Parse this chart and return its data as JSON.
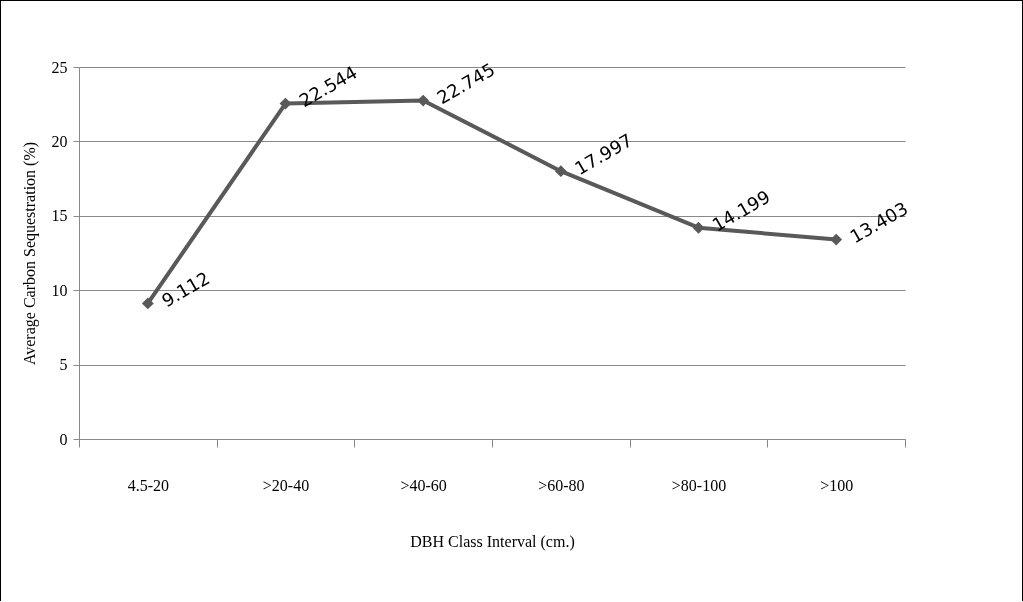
{
  "chart_data": {
    "type": "line",
    "xlabel": "DBH Class Interval (cm.)",
    "ylabel": "Average Carbon Sequestration (%)",
    "categories": [
      "4.5-20",
      ">20-40",
      ">40-60",
      ">60-80",
      ">80-100",
      ">100"
    ],
    "series": [
      {
        "color": "#595959",
        "values": [
          9.112,
          22.544,
          22.745,
          17.997,
          14.199,
          13.403
        ]
      }
    ],
    "ylim": [
      0,
      25
    ],
    "yticks": [
      0,
      5,
      10,
      15,
      20,
      25
    ],
    "grid": "y",
    "marker": "diamond",
    "line_style": "solid",
    "data_labels": true
  }
}
